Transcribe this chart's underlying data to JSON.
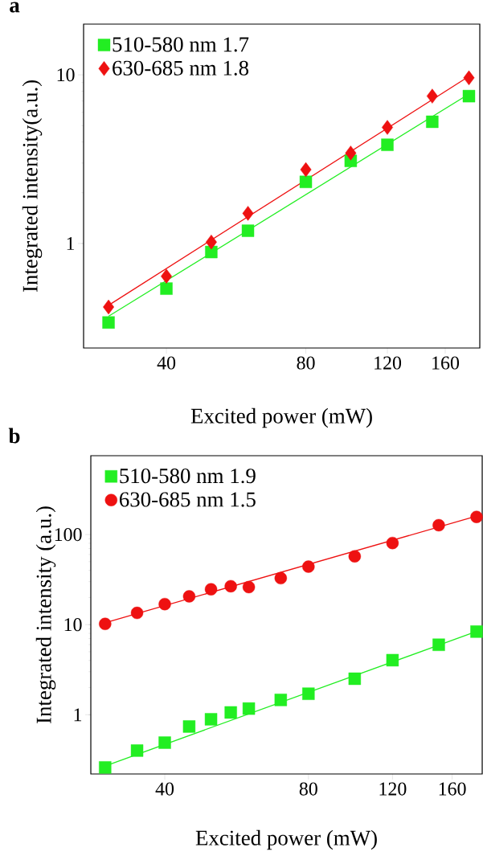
{
  "chart_data": [
    {
      "type": "scatter",
      "title": "a",
      "xlabel": "Excited power (mW)",
      "ylabel": "Integrated intensity(a.u.)",
      "log": "xy",
      "legend": "top left",
      "xlim": [
        26.5,
        190
      ],
      "ylim": [
        0.24,
        20
      ],
      "xticks": [
        40,
        80,
        120,
        160
      ],
      "yticks": [
        1,
        10
      ],
      "series": [
        {
          "name": "510-580 nm 1.7",
          "marker": "square",
          "color": "#22ee22",
          "x": [
            30,
            40,
            50,
            60,
            80,
            100,
            120,
            150,
            180
          ],
          "values": [
            0.34,
            0.54,
            0.89,
            1.19,
            2.32,
            3.09,
            3.85,
            5.27,
            7.48
          ]
        },
        {
          "name": "630-685 nm 1.8",
          "marker": "diamond",
          "color": "#ee1111",
          "x": [
            30,
            40,
            50,
            60,
            80,
            100,
            120,
            150,
            180
          ],
          "values": [
            0.42,
            0.64,
            1.02,
            1.51,
            2.74,
            3.44,
            4.88,
            7.48,
            9.6
          ]
        },
        {
          "type": "line",
          "marker": "none",
          "color": "#22ee22",
          "x": [
            30,
            180
          ],
          "values": [
            0.37,
            7.7
          ]
        },
        {
          "type": "line",
          "marker": "none",
          "color": "#ee1111",
          "x": [
            30,
            180
          ],
          "values": [
            0.43,
            9.8
          ]
        }
      ]
    },
    {
      "type": "scatter",
      "title": "b",
      "xlabel": "Excited power (mW)",
      "ylabel": "Integrated intensity (a.u.)",
      "log": "xy",
      "legend": "top left",
      "xlim": [
        28,
        185
      ],
      "ylim": [
        0.22,
        750
      ],
      "xticks": [
        40,
        80,
        120,
        160
      ],
      "yticks": [
        1,
        10,
        100
      ],
      "series": [
        {
          "name": "510-580 nm 1.9",
          "marker": "square",
          "color": "#22ee22",
          "x": [
            30,
            35,
            40,
            45,
            50,
            55,
            60,
            70,
            80,
            100,
            120,
            150,
            180
          ],
          "values": [
            0.26,
            0.4,
            0.49,
            0.74,
            0.89,
            1.06,
            1.17,
            1.46,
            1.71,
            2.51,
            4.03,
            5.98,
            8.37
          ]
        },
        {
          "name": "630-685 nm 1.5",
          "marker": "circle",
          "color": "#ee1111",
          "x": [
            30,
            35,
            40,
            45,
            50,
            55,
            60,
            70,
            80,
            100,
            120,
            150,
            180
          ],
          "values": [
            10.2,
            13.5,
            16.9,
            20.6,
            24.7,
            26.7,
            26.1,
            32.8,
            44,
            57.3,
            80.5,
            127,
            157
          ]
        },
        {
          "type": "line",
          "marker": "none",
          "color": "#22ee22",
          "x": [
            30,
            180
          ],
          "values": [
            0.27,
            8.4
          ]
        },
        {
          "type": "line",
          "marker": "none",
          "color": "#ee1111",
          "x": [
            30,
            180
          ],
          "values": [
            10.5,
            160
          ]
        }
      ]
    }
  ]
}
